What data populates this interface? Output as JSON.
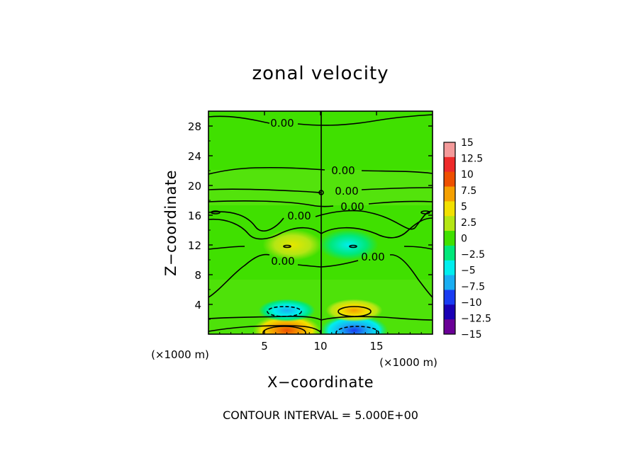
{
  "chart_data": {
    "type": "heatmap",
    "title": "zonal velocity",
    "xlabel": "X−coordinate",
    "ylabel": "Z−coordinate",
    "x_unit": "(×1000 m)",
    "z_unit": "(×1000 m)",
    "xlim": [
      0,
      20
    ],
    "ylim": [
      0,
      30
    ],
    "x_ticks": [
      5,
      10,
      15
    ],
    "x_tick_labels": [
      "5",
      "10",
      "15"
    ],
    "y_ticks": [
      4,
      8,
      12,
      16,
      20,
      24,
      28
    ],
    "y_tick_labels": [
      "4",
      "8",
      "12",
      "16",
      "20",
      "24",
      "28"
    ],
    "colorbar": {
      "levels": [
        15,
        12.5,
        10,
        7.5,
        5,
        2.5,
        0,
        -2.5,
        -5,
        -7.5,
        -10,
        -12.5,
        -15
      ],
      "labels": [
        "15",
        "12.5",
        "10",
        "7.5",
        "5",
        "2.5",
        "0",
        "−2.5",
        "−5",
        "−7.5",
        "−10",
        "−12.5",
        "−15"
      ],
      "colors": [
        "#f49a9a",
        "#ee2a2a",
        "#ee5000",
        "#f5a000",
        "#f2e000",
        "#b4e614",
        "#40e000",
        "#00e87a",
        "#00eeee",
        "#1aaef2",
        "#1a3cf2",
        "#1a00b4",
        "#6a0096"
      ]
    },
    "contour_labels": [
      "0.00",
      "0.00",
      "0.00",
      "0.00",
      "0.00",
      "0.00",
      "0.00"
    ],
    "features": [
      {
        "x": 7,
        "z": 0.5,
        "value": 8,
        "sign": "positive"
      },
      {
        "x": 13,
        "z": 0.5,
        "value": -8,
        "sign": "negative"
      },
      {
        "x": 7,
        "z": 3.2,
        "value": -6,
        "sign": "negative"
      },
      {
        "x": 13,
        "z": 3.2,
        "value": 6,
        "sign": "positive"
      },
      {
        "x": 7.5,
        "z": 12,
        "value": 4,
        "sign": "positive"
      },
      {
        "x": 12.5,
        "z": 12,
        "value": -4,
        "sign": "negative"
      }
    ],
    "contour_interval_text": "CONTOUR INTERVAL = 5.000E+00"
  }
}
